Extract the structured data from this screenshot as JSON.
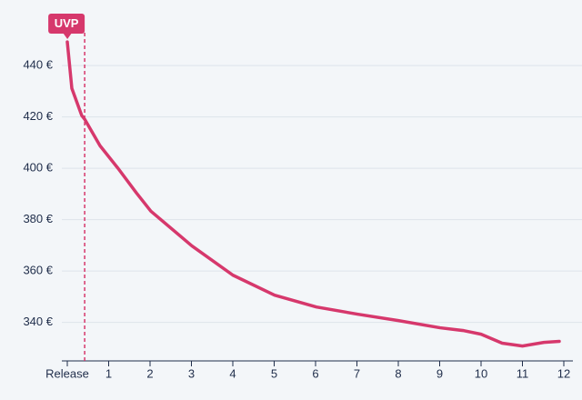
{
  "chart_data": {
    "type": "line",
    "annotation": {
      "label": "UVP",
      "x": 0.42
    },
    "x": [
      0,
      0.11,
      0.35,
      0.42,
      0.79,
      1.23,
      1.67,
      2.02,
      3.01,
      4,
      5.01,
      6.02,
      7.01,
      8,
      9.01,
      9.58,
      10,
      10.51,
      11,
      11.52,
      11.89
    ],
    "series": [
      {
        "color": "#d6386c",
        "values": [
          449.2,
          431.1,
          420.5,
          419.1,
          408.8,
          399.9,
          390.4,
          383.3,
          369.8,
          358.4,
          350.6,
          346.0,
          343.2,
          340.7,
          337.9,
          336.8,
          335.4,
          331.9,
          330.8,
          332.2,
          332.6
        ]
      }
    ],
    "xlim": [
      0,
      12
    ],
    "xticks": [
      {
        "value": 0,
        "label": "Release"
      },
      1,
      2,
      3,
      4,
      5,
      6,
      7,
      8,
      9,
      10,
      11,
      12
    ],
    "ylim": [
      325,
      455
    ],
    "yticks": [
      {
        "value": 340,
        "label": "340 €"
      },
      {
        "value": 360,
        "label": "360 €"
      },
      {
        "value": 380,
        "label": "380 €"
      },
      {
        "value": 400,
        "label": "400 €"
      },
      {
        "value": 420,
        "label": "420 €"
      },
      {
        "value": 440,
        "label": "440 €"
      }
    ],
    "grid": true
  }
}
